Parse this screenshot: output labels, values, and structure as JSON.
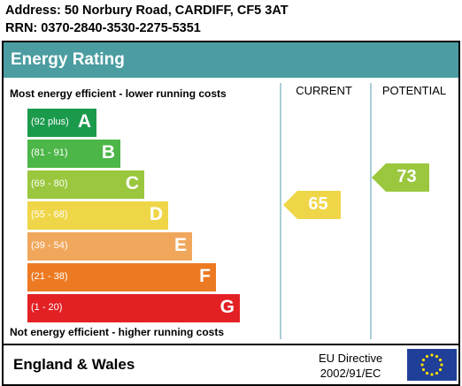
{
  "header": {
    "address": "Address: 50 Norbury Road, CARDIFF, CF5 3AT",
    "rrn": "RRN: 0370-2840-3530-2275-5351"
  },
  "panel": {
    "title": "Energy Rating",
    "top_label": "Most energy efficient - lower running costs",
    "bottom_label": "Not energy efficient - higher running costs",
    "current_heading": "CURRENT",
    "potential_heading": "POTENTIAL"
  },
  "chart_data": {
    "type": "bar",
    "categories": [
      "A",
      "B",
      "C",
      "D",
      "E",
      "F",
      "G"
    ],
    "ranges": [
      "(92 plus)",
      "(81 - 91)",
      "(69 - 80)",
      "(55 - 68)",
      "(39 - 54)",
      "(21 - 38)",
      "(1 - 20)"
    ],
    "band_colors": [
      "#008054",
      "#19b459",
      "#8dce46",
      "#ffd500",
      "#fcaa65",
      "#ef8023",
      "#e9153b"
    ],
    "display_colors": [
      "#1b9a4c",
      "#4cb648",
      "#9ac73e",
      "#efd648",
      "#f0a75c",
      "#ec7a22",
      "#e32125"
    ],
    "current": {
      "value": 65,
      "band": "D",
      "color": "#efd648"
    },
    "potential": {
      "value": 73,
      "band": "C",
      "color": "#9ac73e"
    }
  },
  "footer": {
    "region": "England & Wales",
    "directive_line1": "EU Directive",
    "directive_line2": "2002/91/EC",
    "flag_icon": "eu-flag-icon"
  }
}
